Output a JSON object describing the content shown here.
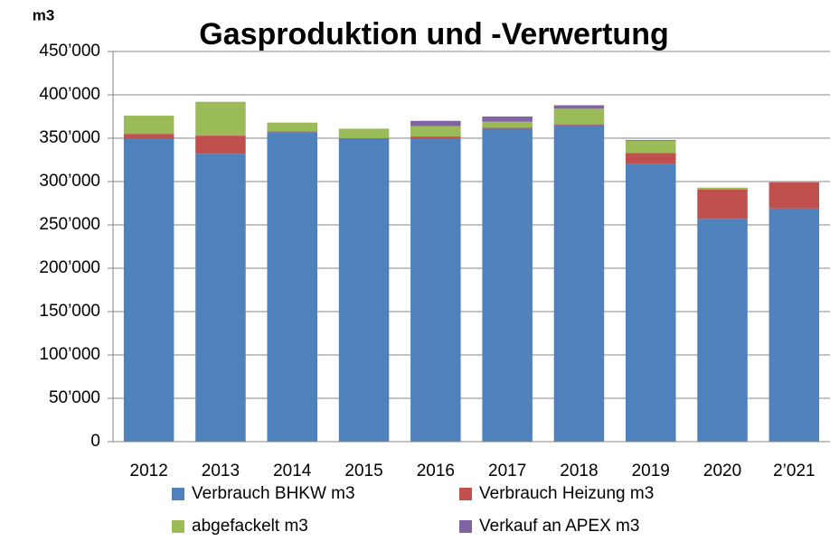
{
  "chart_data": {
    "type": "stacked_bar",
    "title": "Gasproduktion und -Verwertung",
    "y_label": "m3",
    "categories": [
      "2012",
      "2013",
      "2014",
      "2015",
      "2016",
      "2017",
      "2018",
      "2019",
      "2020",
      "2’021"
    ],
    "series": [
      {
        "name": "Verbrauch BHKW m3",
        "color": "#4f81bd",
        "values": [
          350000,
          332000,
          357000,
          349000,
          350000,
          361000,
          365000,
          320000,
          257000,
          269000
        ]
      },
      {
        "name": "Verbrauch Heizung m3",
        "color": "#c0504d",
        "values": [
          5000,
          21000,
          1000,
          1000,
          2000,
          1000,
          1000,
          13000,
          34000,
          30000
        ]
      },
      {
        "name": "abgefackelt m3",
        "color": "#9bbb59",
        "values": [
          21000,
          39000,
          10000,
          11000,
          12000,
          7000,
          18000,
          14000,
          2000,
          1000
        ]
      },
      {
        "name": "Verkauf an APEX m3",
        "color": "#8064a2",
        "values": [
          0,
          0,
          0,
          0,
          6000,
          6000,
          4000,
          1000,
          0,
          0
        ]
      }
    ],
    "ylim": [
      0,
      450000
    ],
    "yticks": [
      0,
      {
        "value": 50000,
        "label": "50’000"
      },
      {
        "value": 100000,
        "label": "100’000"
      },
      {
        "value": 150000,
        "label": "150’000"
      },
      {
        "value": 200000,
        "label": "200’000"
      },
      {
        "value": 250000,
        "label": "250’000"
      },
      {
        "value": 300000,
        "label": "300’000"
      },
      {
        "value": 350000,
        "label": "350’000"
      },
      {
        "value": 400000,
        "label": "400’000"
      },
      {
        "value": 450000,
        "label": "450’000"
      }
    ],
    "grid": true
  }
}
